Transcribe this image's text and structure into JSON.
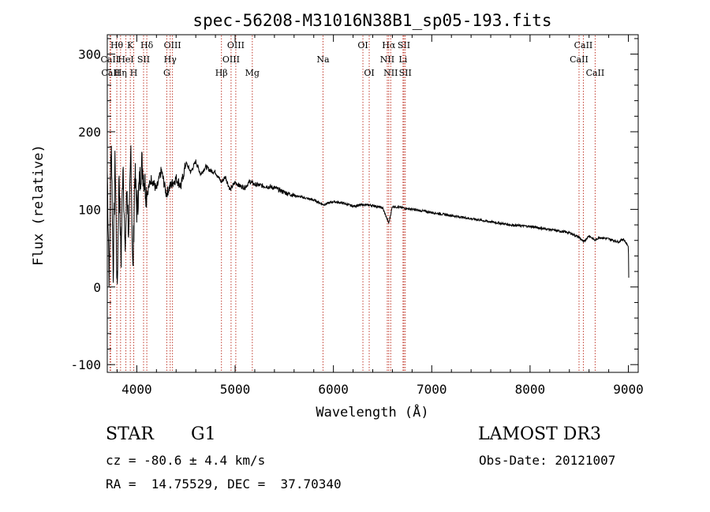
{
  "chart_data": {
    "type": "line",
    "title": "spec-56208-M31016N38B1_sp05-193.fits",
    "xlabel": "Wavelength (Å)",
    "ylabel": "Flux (relative)",
    "xlim": [
      3700,
      9100
    ],
    "ylim": [
      -110,
      325
    ],
    "x_ticks": [
      4000,
      5000,
      6000,
      7000,
      8000,
      9000
    ],
    "y_ticks": [
      -100,
      0,
      100,
      200,
      300
    ],
    "spectrum": {
      "x": [
        3700,
        3720,
        3740,
        3760,
        3780,
        3800,
        3820,
        3840,
        3860,
        3880,
        3900,
        3920,
        3940,
        3960,
        3980,
        4000,
        4050,
        4100,
        4150,
        4200,
        4250,
        4300,
        4340,
        4400,
        4450,
        4500,
        4550,
        4600,
        4650,
        4700,
        4750,
        4800,
        4860,
        4900,
        4950,
        5000,
        5050,
        5100,
        5150,
        5200,
        5300,
        5400,
        5500,
        5600,
        5700,
        5800,
        5900,
        6000,
        6100,
        6200,
        6300,
        6400,
        6500,
        6563,
        6600,
        6700,
        6800,
        6900,
        7000,
        7200,
        7400,
        7600,
        7800,
        8000,
        8200,
        8400,
        8500,
        8542,
        8600,
        8662,
        8700,
        8800,
        8900,
        8950,
        9000,
        9005
      ],
      "y": [
        150,
        5,
        200,
        20,
        170,
        -10,
        150,
        30,
        170,
        40,
        130,
        60,
        180,
        10,
        150,
        100,
        160,
        120,
        140,
        125,
        150,
        120,
        130,
        140,
        130,
        160,
        148,
        162,
        145,
        155,
        150,
        148,
        135,
        142,
        125,
        135,
        130,
        128,
        136,
        132,
        130,
        128,
        122,
        118,
        115,
        112,
        106,
        110,
        108,
        104,
        106,
        105,
        102,
        82,
        104,
        102,
        100,
        98,
        96,
        92,
        88,
        84,
        80,
        78,
        74,
        70,
        64,
        58,
        66,
        60,
        64,
        62,
        58,
        62,
        52,
        2
      ]
    },
    "lines": [
      {
        "label": "Hθ",
        "x": 3797,
        "row": 0
      },
      {
        "label": "CaII",
        "x": 3727,
        "row": 1
      },
      {
        "label": "CaII",
        "x": 3734,
        "row": 2
      },
      {
        "label": "K",
        "x": 3934,
        "row": 0
      },
      {
        "label": "HeI",
        "x": 3889,
        "row": 1
      },
      {
        "label": "Hη",
        "x": 3835,
        "row": 2
      },
      {
        "label": "Hδ",
        "x": 4102,
        "row": 0
      },
      {
        "label": "SII",
        "x": 4069,
        "row": 1
      },
      {
        "label": "H",
        "x": 3969,
        "row": 2
      },
      {
        "label": "OIII",
        "x": 4363,
        "row": 0
      },
      {
        "label": "Hγ",
        "x": 4340,
        "row": 1
      },
      {
        "label": "G",
        "x": 4305,
        "row": 2
      },
      {
        "label": "OIII",
        "x": 5007,
        "row": 0
      },
      {
        "label": "OIII",
        "x": 4959,
        "row": 1
      },
      {
        "label": "Hβ",
        "x": 4861,
        "row": 2
      },
      {
        "label": "Mg",
        "x": 5175,
        "row": 2
      },
      {
        "label": "Na",
        "x": 5894,
        "row": 1
      },
      {
        "label": "OI",
        "x": 6300,
        "row": 0
      },
      {
        "label": "OI",
        "x": 6364,
        "row": 2
      },
      {
        "label": "Hα",
        "x": 6563,
        "row": 0
      },
      {
        "label": "NII",
        "x": 6548,
        "row": 1
      },
      {
        "label": "NII",
        "x": 6583,
        "row": 2
      },
      {
        "label": "SII",
        "x": 6717,
        "row": 0
      },
      {
        "label": "Li",
        "x": 6708,
        "row": 1
      },
      {
        "label": "SII",
        "x": 6731,
        "row": 2
      },
      {
        "label": "CaII",
        "x": 8542,
        "row": 0
      },
      {
        "label": "CaII",
        "x": 8498,
        "row": 1
      },
      {
        "label": "CaII",
        "x": 8662,
        "row": 2
      }
    ]
  },
  "info": {
    "class": "STAR",
    "subclass": "G1",
    "survey": "LAMOST DR3",
    "cz": "cz = -80.6 ± 4.4 km/s",
    "obs_date": "Obs-Date: 20121007",
    "radec": "RA =  14.75529, DEC =  37.70340"
  }
}
